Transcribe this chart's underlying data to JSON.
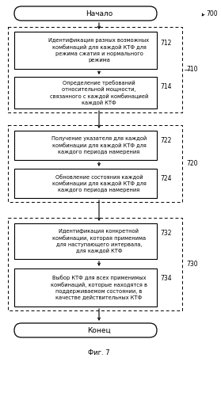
{
  "background_color": "#ffffff",
  "start_text": "Начало",
  "end_text": "Конец",
  "fig_label": "Фиг. 7",
  "diagram_label": "700",
  "box_712_text": "Идентификация разных возможных\nкомбинаций для каждой КТФ для\nрежима сжатия и нормального\nрежима",
  "box_714_text": "Определение требований\nотносительной мощности,\nсвязанного с каждой комбинацией\nкаждой КТФ",
  "box_722_text": "Получение указателя для каждой\nкомбинации для каждой КТФ для\nкаждого периода намерения",
  "box_724_text": "Обновление состояния каждой\nкомбинации для каждой КТФ для\nкаждого периода намерения",
  "box_732_text": "Идентификация конкретной\nкомбинации, которая применима\nдля наступающего интервала,\nдля каждой КТФ",
  "box_734_text": "Выбор КТФ для всех применимых\nкомбинаций, которые находятся в\nподдерживаемом состоянии, в\nкачестве действительных КТФ",
  "label_712": "712",
  "label_714": "714",
  "label_722": "722",
  "label_724": "724",
  "label_732": "732",
  "label_734": "734",
  "label_710": "710",
  "label_720": "720",
  "label_730": "730",
  "font_size_text": 4.8,
  "font_size_label": 5.5,
  "font_size_start_end": 6.5,
  "font_size_fig": 6.0
}
